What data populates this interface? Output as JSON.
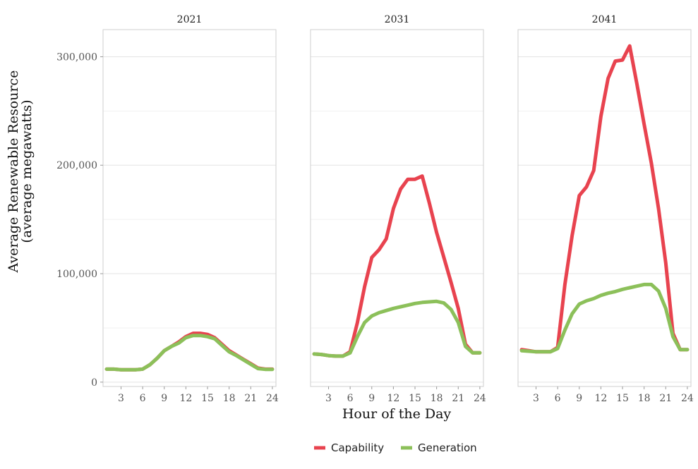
{
  "chart_data": {
    "type": "line",
    "facet_titles": [
      "2021",
      "2031",
      "2041"
    ],
    "xlabel": "Hour of the Day",
    "ylabel_lines": [
      "Average Renewable Resource",
      "(average megawatts)"
    ],
    "x_ticks": [
      3,
      6,
      9,
      12,
      15,
      18,
      21,
      24
    ],
    "x_range": [
      0.5,
      24.5
    ],
    "y_ticks": [
      0,
      100000,
      200000,
      300000
    ],
    "y_tick_labels": [
      "0",
      "100,000",
      "200,000",
      "300,000"
    ],
    "y_range": [
      -4000,
      325000
    ],
    "grid": true,
    "legend_position": "bottom",
    "series_meta": [
      {
        "name": "Capability",
        "color": "#e8434f"
      },
      {
        "name": "Generation",
        "color": "#8cc05a"
      }
    ],
    "panels": [
      {
        "title": "2021",
        "x": [
          1,
          2,
          3,
          4,
          5,
          6,
          7,
          8,
          9,
          10,
          11,
          12,
          13,
          14,
          15,
          16,
          17,
          18,
          19,
          20,
          21,
          22,
          23,
          24
        ],
        "series": [
          {
            "name": "Capability",
            "values": [
              12000,
              12000,
              11500,
              11500,
              11500,
              12000,
              16000,
              22000,
              29000,
              33000,
              37000,
              42000,
              45000,
              45000,
              44000,
              41000,
              35000,
              29000,
              25000,
              21000,
              17000,
              13000,
              12000,
              12000
            ]
          },
          {
            "name": "Generation",
            "values": [
              12000,
              12000,
              11500,
              11500,
              11500,
              12000,
              16000,
              22000,
              29000,
              33000,
              36000,
              41000,
              43000,
              43000,
              42000,
              40000,
              34000,
              28000,
              24500,
              20500,
              16500,
              12500,
              11800,
              11800
            ]
          }
        ]
      },
      {
        "title": "2031",
        "x": [
          1,
          2,
          3,
          4,
          5,
          6,
          7,
          8,
          9,
          10,
          11,
          12,
          13,
          14,
          15,
          16,
          17,
          18,
          19,
          20,
          21,
          22,
          23,
          24
        ],
        "series": [
          {
            "name": "Capability",
            "values": [
              26000,
              25500,
              24500,
              24000,
              24000,
              28000,
              55000,
              88000,
              115000,
              122000,
              132000,
              160000,
              178000,
              187000,
              187000,
              190000,
              165000,
              138000,
              115000,
              92000,
              68000,
              35000,
              27000,
              27000
            ]
          },
          {
            "name": "Generation",
            "values": [
              26000,
              25500,
              24500,
              24000,
              24000,
              27000,
              42000,
              55000,
              61000,
              64000,
              66000,
              68000,
              69500,
              71000,
              72500,
              73500,
              74000,
              74500,
              73000,
              67000,
              55000,
              33000,
              27000,
              27000
            ]
          }
        ]
      },
      {
        "title": "2041",
        "x": [
          1,
          2,
          3,
          4,
          5,
          6,
          7,
          8,
          9,
          10,
          11,
          12,
          13,
          14,
          15,
          16,
          17,
          18,
          19,
          20,
          21,
          22,
          23,
          24
        ],
        "series": [
          {
            "name": "Capability",
            "values": [
              30000,
              29000,
              28000,
              28000,
              28000,
              32000,
              90000,
              135000,
              172000,
              180000,
              195000,
              245000,
              280000,
              296000,
              297000,
              310000,
              275000,
              238000,
              202000,
              160000,
              110000,
              45000,
              30000,
              30000
            ]
          },
          {
            "name": "Generation",
            "values": [
              29000,
              28500,
              28000,
              28000,
              28000,
              31000,
              48000,
              63000,
              72000,
              75000,
              77000,
              80000,
              82000,
              83500,
              85500,
              87000,
              88500,
              90000,
              90000,
              84000,
              68000,
              42000,
              30000,
              30000
            ]
          }
        ]
      }
    ]
  }
}
